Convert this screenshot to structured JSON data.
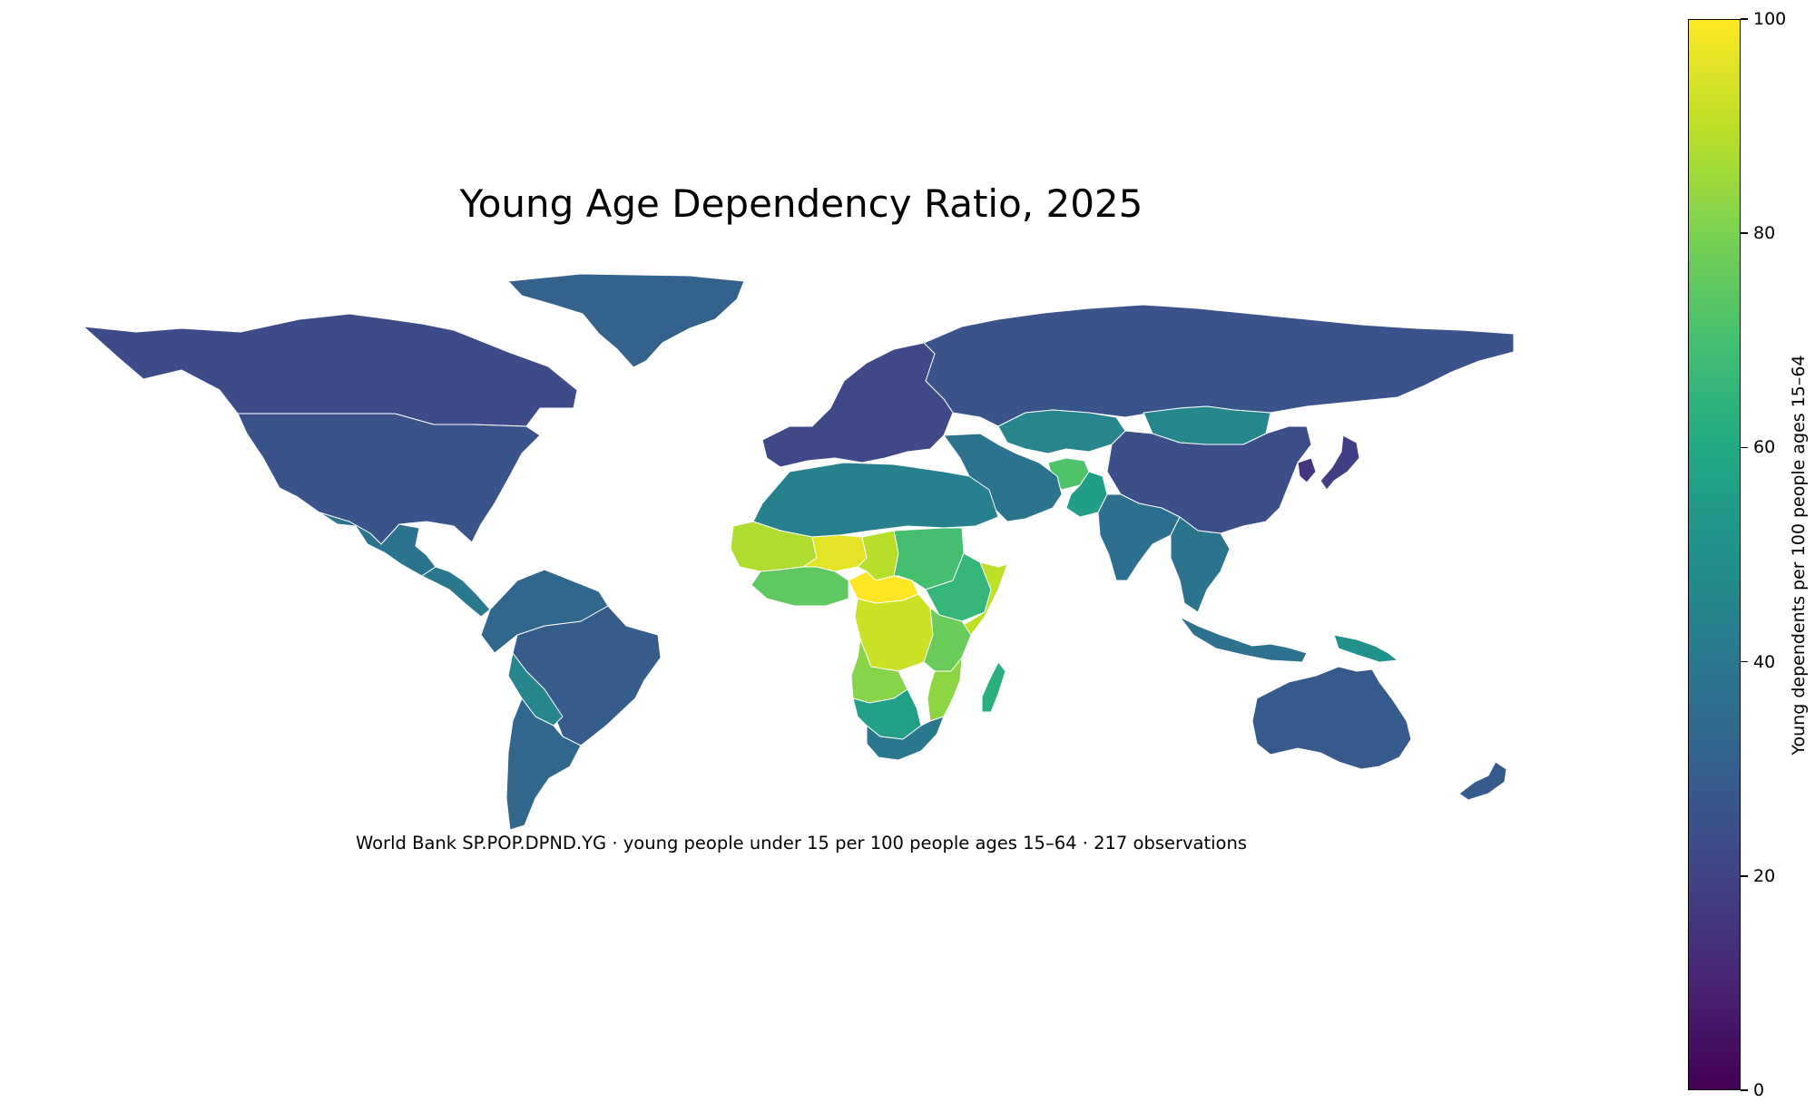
{
  "title": "Young Age Dependency Ratio, 2025",
  "caption": "World Bank SP.POP.DPND.YG · young people under 15 per 100 people ages 15–64 · 217 observations",
  "colorbar": {
    "label": "Young dependents per 100 people ages 15–64",
    "min": 0,
    "max": 100,
    "ticks": [
      "0",
      "20",
      "40",
      "60",
      "80",
      "100"
    ],
    "colormap": "viridis",
    "stops": [
      "#440154",
      "#482475",
      "#414487",
      "#355f8d",
      "#2a788e",
      "#21918c",
      "#22a884",
      "#44bf70",
      "#7ad151",
      "#bddf26",
      "#fde725"
    ]
  },
  "chart_data": {
    "type": "choropleth",
    "title": "Young Age Dependency Ratio, 2025",
    "value_range": [
      0,
      100
    ],
    "regions": [
      {
        "name": "Greenland",
        "value": 31
      },
      {
        "name": "Canada",
        "value": 23
      },
      {
        "name": "United States",
        "value": 26
      },
      {
        "name": "Mexico",
        "value": 38
      },
      {
        "name": "Central America",
        "value": 40
      },
      {
        "name": "Brazil",
        "value": 29
      },
      {
        "name": "Bolivia",
        "value": 45
      },
      {
        "name": "Argentina",
        "value": 33
      },
      {
        "name": "Northern South America",
        "value": 33
      },
      {
        "name": "Russia",
        "value": 26
      },
      {
        "name": "Europe",
        "value": 22
      },
      {
        "name": "China",
        "value": 24
      },
      {
        "name": "India",
        "value": 36
      },
      {
        "name": "Mongolia",
        "value": 46
      },
      {
        "name": "Kazakhstan",
        "value": 45
      },
      {
        "name": "Afghanistan",
        "value": 72
      },
      {
        "name": "Pakistan",
        "value": 55
      },
      {
        "name": "Middle East",
        "value": 38
      },
      {
        "name": "North Africa",
        "value": 43
      },
      {
        "name": "Niger",
        "value": 96
      },
      {
        "name": "Mali",
        "value": 88
      },
      {
        "name": "Chad",
        "value": 89
      },
      {
        "name": "Central African Republic",
        "value": 100
      },
      {
        "name": "DR Congo",
        "value": 92
      },
      {
        "name": "Angola",
        "value": 82
      },
      {
        "name": "Nigeria",
        "value": 75
      },
      {
        "name": "Sudan",
        "value": 70
      },
      {
        "name": "Ethiopia",
        "value": 66
      },
      {
        "name": "Somalia",
        "value": 90
      },
      {
        "name": "Tanzania",
        "value": 77
      },
      {
        "name": "Mozambique",
        "value": 83
      },
      {
        "name": "Madagascar",
        "value": 63
      },
      {
        "name": "Namibia/Botswana",
        "value": 56
      },
      {
        "name": "South Africa",
        "value": 40
      },
      {
        "name": "Japan",
        "value": 18
      },
      {
        "name": "Korea",
        "value": 15
      },
      {
        "name": "Southeast Asia",
        "value": 38
      },
      {
        "name": "Indonesia",
        "value": 37
      },
      {
        "name": "Papua New Guinea",
        "value": 50
      },
      {
        "name": "Australia",
        "value": 28
      },
      {
        "name": "New Zealand",
        "value": 28
      }
    ]
  }
}
